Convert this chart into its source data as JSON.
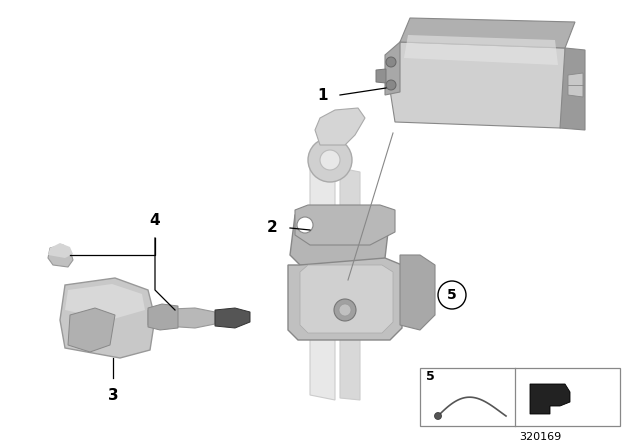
{
  "bg_color": "#ffffff",
  "diagram_number": "320169",
  "label_fontsize": 11,
  "small_fontsize": 8,
  "line_color": "#000000",
  "part_face": "#cccccc",
  "part_edge": "#888888",
  "part_dark": "#999999",
  "part_light": "#e8e8e8",
  "part_white": "#f0f0f0"
}
